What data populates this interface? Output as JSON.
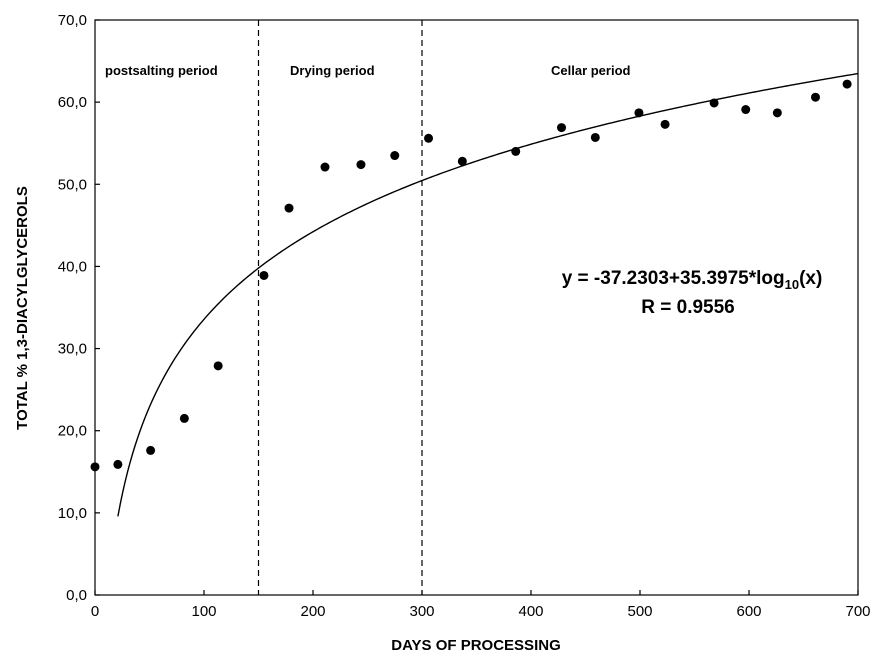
{
  "chart_data": {
    "type": "scatter",
    "xlabel": "DAYS OF PROCESSING",
    "ylabel": "TOTAL % 1,3-DIACYLGLYCEROLS",
    "xlim": [
      0,
      700
    ],
    "ylim": [
      0,
      70
    ],
    "x_ticks": [
      "0",
      "100",
      "200",
      "300",
      "400",
      "500",
      "600",
      "700"
    ],
    "y_ticks": [
      "0,0",
      "10,0",
      "20,0",
      "30,0",
      "40,0",
      "50,0",
      "60,0",
      "70,0"
    ],
    "grid": false,
    "points": [
      {
        "x": 0,
        "y": 15.6
      },
      {
        "x": 21,
        "y": 15.9
      },
      {
        "x": 51,
        "y": 17.6
      },
      {
        "x": 82,
        "y": 21.5
      },
      {
        "x": 113,
        "y": 27.9
      },
      {
        "x": 155,
        "y": 38.9
      },
      {
        "x": 178,
        "y": 47.1
      },
      {
        "x": 211,
        "y": 52.1
      },
      {
        "x": 244,
        "y": 52.4
      },
      {
        "x": 275,
        "y": 53.5
      },
      {
        "x": 306,
        "y": 55.6
      },
      {
        "x": 337,
        "y": 52.8
      },
      {
        "x": 386,
        "y": 54.0
      },
      {
        "x": 428,
        "y": 56.9
      },
      {
        "x": 459,
        "y": 55.7
      },
      {
        "x": 499,
        "y": 58.7
      },
      {
        "x": 523,
        "y": 57.3
      },
      {
        "x": 568,
        "y": 59.9
      },
      {
        "x": 597,
        "y": 59.1
      },
      {
        "x": 626,
        "y": 58.7
      },
      {
        "x": 661,
        "y": 60.6
      },
      {
        "x": 690,
        "y": 62.2
      }
    ],
    "fit": {
      "intercept": -37.2303,
      "slope": 35.3975,
      "x_start": 21,
      "x_end": 700,
      "equation_prefix": "y = -37.2303+35.3975*log",
      "equation_subscript": "10",
      "equation_suffix": "(x)",
      "r_label": "R = 0.9556"
    },
    "periods": [
      {
        "label": "postsalting period"
      },
      {
        "label": "Drying period"
      },
      {
        "label": "Cellar period"
      }
    ],
    "period_boundaries": [
      150,
      300
    ]
  }
}
